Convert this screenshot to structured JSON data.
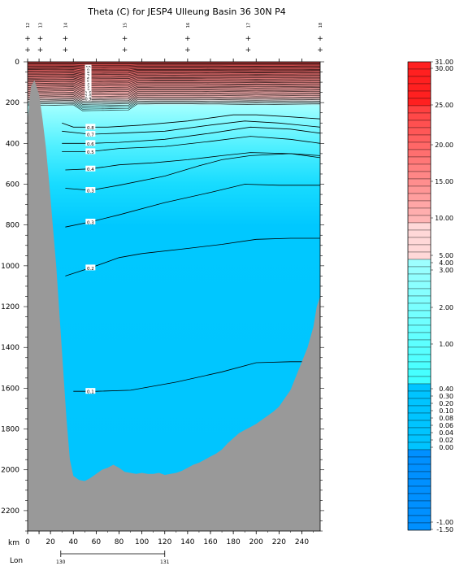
{
  "chart_data": {
    "type": "heatmap",
    "title": "Theta (C) for JESP4 Ulleung Basin 36 30N P4",
    "xlabel": "km",
    "lon_label": "Lon",
    "x_range": [
      0,
      256
    ],
    "y_range": [
      0,
      2300
    ],
    "y_inverted": true,
    "x_ticks": [
      "0",
      "10",
      "20",
      "40",
      "60",
      "80",
      "100",
      "120",
      "140",
      "160",
      "180",
      "200",
      "220",
      "240"
    ],
    "x_tick_values": [
      0,
      10,
      20,
      40,
      60,
      80,
      100,
      120,
      140,
      160,
      180,
      200,
      220,
      240
    ],
    "y_ticks": [
      "0",
      "200",
      "400",
      "600",
      "800",
      "1000",
      "1200",
      "1400",
      "1600",
      "1800",
      "2000",
      "2200"
    ],
    "y_tick_values": [
      0,
      200,
      400,
      600,
      800,
      1000,
      1200,
      1400,
      1600,
      1800,
      2000,
      2200
    ],
    "stations": [
      {
        "label": "12",
        "x": 0
      },
      {
        "label": "13",
        "x": 11
      },
      {
        "label": "14",
        "x": 33
      },
      {
        "label": "15",
        "x": 85
      },
      {
        "label": "16",
        "x": 140
      },
      {
        "label": "17",
        "x": 193
      },
      {
        "label": "18",
        "x": 256
      }
    ],
    "lon_ticks": [
      {
        "label": "130",
        "x": 29
      },
      {
        "label": "131",
        "x": 120
      }
    ],
    "bathymetry": [
      [
        0,
        280
      ],
      [
        3,
        120
      ],
      [
        6,
        90
      ],
      [
        10,
        160
      ],
      [
        13,
        280
      ],
      [
        16,
        420
      ],
      [
        19,
        600
      ],
      [
        22,
        800
      ],
      [
        25,
        1000
      ],
      [
        28,
        1250
      ],
      [
        31,
        1500
      ],
      [
        34,
        1750
      ],
      [
        37,
        1950
      ],
      [
        40,
        2030
      ],
      [
        45,
        2050
      ],
      [
        50,
        2055
      ],
      [
        55,
        2040
      ],
      [
        60,
        2020
      ],
      [
        65,
        2000
      ],
      [
        70,
        1990
      ],
      [
        75,
        1975
      ],
      [
        80,
        1990
      ],
      [
        85,
        2010
      ],
      [
        90,
        2015
      ],
      [
        95,
        2020
      ],
      [
        100,
        2015
      ],
      [
        105,
        2020
      ],
      [
        110,
        2020
      ],
      [
        115,
        2015
      ],
      [
        120,
        2025
      ],
      [
        125,
        2020
      ],
      [
        130,
        2015
      ],
      [
        135,
        2005
      ],
      [
        140,
        1990
      ],
      [
        145,
        1975
      ],
      [
        150,
        1965
      ],
      [
        155,
        1950
      ],
      [
        160,
        1935
      ],
      [
        165,
        1920
      ],
      [
        170,
        1900
      ],
      [
        175,
        1870
      ],
      [
        180,
        1845
      ],
      [
        185,
        1820
      ],
      [
        190,
        1805
      ],
      [
        195,
        1790
      ],
      [
        200,
        1775
      ],
      [
        205,
        1755
      ],
      [
        210,
        1735
      ],
      [
        215,
        1715
      ],
      [
        220,
        1690
      ],
      [
        225,
        1650
      ],
      [
        230,
        1610
      ],
      [
        235,
        1540
      ],
      [
        240,
        1470
      ],
      [
        245,
        1400
      ],
      [
        250,
        1300
      ],
      [
        253,
        1200
      ],
      [
        256,
        1150
      ]
    ],
    "contours": [
      {
        "label": "0.8",
        "points": [
          [
            30,
            300
          ],
          [
            40,
            320
          ],
          [
            55,
            320
          ],
          [
            70,
            320
          ],
          [
            100,
            310
          ],
          [
            140,
            290
          ],
          [
            180,
            260
          ],
          [
            200,
            260
          ],
          [
            230,
            270
          ],
          [
            256,
            280
          ]
        ]
      },
      {
        "label": "0.7",
        "points": [
          [
            30,
            340
          ],
          [
            55,
            355
          ],
          [
            80,
            350
          ],
          [
            120,
            340
          ],
          [
            160,
            310
          ],
          [
            190,
            290
          ],
          [
            220,
            300
          ],
          [
            256,
            320
          ]
        ]
      },
      {
        "label": "0.6",
        "points": [
          [
            30,
            400
          ],
          [
            55,
            400
          ],
          [
            80,
            395
          ],
          [
            120,
            380
          ],
          [
            160,
            350
          ],
          [
            195,
            320
          ],
          [
            230,
            330
          ],
          [
            256,
            350
          ]
        ]
      },
      {
        "label": "0.5",
        "points": [
          [
            30,
            440
          ],
          [
            55,
            440
          ],
          [
            80,
            425
          ],
          [
            120,
            415
          ],
          [
            160,
            390
          ],
          [
            195,
            365
          ],
          [
            230,
            380
          ],
          [
            256,
            400
          ]
        ]
      },
      {
        "label": "0.4",
        "points": [
          [
            33,
            530
          ],
          [
            55,
            525
          ],
          [
            80,
            505
          ],
          [
            110,
            495
          ],
          [
            140,
            480
          ],
          [
            170,
            460
          ],
          [
            195,
            445
          ],
          [
            230,
            450
          ],
          [
            256,
            470
          ]
        ]
      },
      {
        "label": "0.3",
        "points": [
          [
            33,
            620
          ],
          [
            55,
            630
          ],
          [
            80,
            605
          ],
          [
            120,
            560
          ],
          [
            150,
            510
          ],
          [
            170,
            480
          ],
          [
            195,
            460
          ],
          [
            230,
            450
          ],
          [
            256,
            460
          ]
        ]
      },
      {
        "label": "0.3",
        "points": [
          [
            33,
            810
          ],
          [
            55,
            785
          ],
          [
            80,
            750
          ],
          [
            120,
            690
          ],
          [
            160,
            640
          ],
          [
            190,
            600
          ],
          [
            220,
            605
          ],
          [
            256,
            605
          ]
        ]
      },
      {
        "label": "0.2",
        "points": [
          [
            33,
            1050
          ],
          [
            55,
            1010
          ],
          [
            80,
            960
          ],
          [
            100,
            940
          ],
          [
            140,
            915
          ],
          [
            170,
            895
          ],
          [
            200,
            870
          ],
          [
            230,
            865
          ],
          [
            256,
            865
          ]
        ]
      },
      {
        "label": "0.1",
        "points": [
          [
            40,
            1615
          ],
          [
            60,
            1615
          ],
          [
            90,
            1610
          ],
          [
            130,
            1570
          ],
          [
            170,
            1520
          ],
          [
            200,
            1475
          ],
          [
            230,
            1470
          ],
          [
            256,
            1470
          ]
        ]
      }
    ],
    "surface_labels": [
      "10",
      "9",
      "8",
      "7",
      "6",
      "5",
      "4",
      "3",
      "2",
      "1.5",
      "1.0",
      "0.9"
    ],
    "colorbar": {
      "labels": [
        "31.00",
        "30.00",
        "25.00",
        "20.00",
        "15.00",
        "10.00",
        "5.00",
        "4.00",
        "3.00",
        "2.00",
        "1.00",
        "0.40",
        "0.30",
        "0.20",
        "0.10",
        "0.08",
        "0.06",
        "0.04",
        "0.02",
        "0.00",
        "-1.00",
        "-1.50"
      ],
      "colors": {
        "red_dark": "#ff2020",
        "red_light": "#ffb0b0",
        "pink_pale": "#ffd8d8",
        "cyan_light": "#80ffff",
        "cyan": "#40f0f0",
        "blue_cyan": "#00c4ff",
        "blue": "#0090ff"
      }
    },
    "colors": {
      "land": "#999999",
      "deep_water": "#00c8ff",
      "mid_water": "#40e8ff",
      "upper_water": "#80f8ff",
      "surface_warm": "#f0a0a0",
      "surface_hot": "#e04848"
    }
  }
}
